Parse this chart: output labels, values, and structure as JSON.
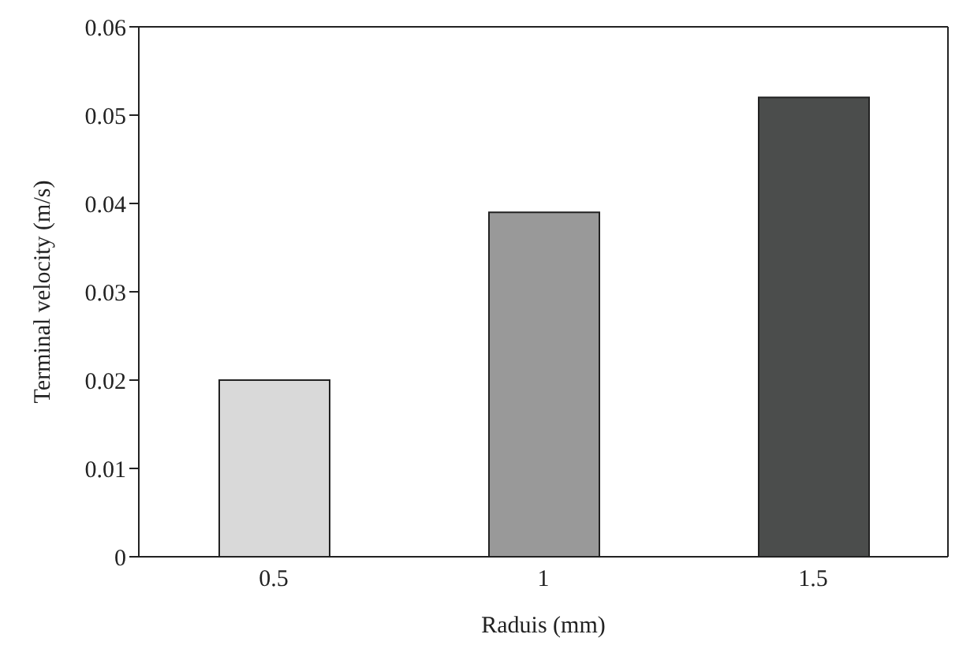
{
  "chart_data": {
    "type": "bar",
    "xlabel": "Raduis (mm)",
    "ylabel": "Terminal velocity (m/s)",
    "categories": [
      "0.5",
      "1",
      "1.5"
    ],
    "values": [
      0.02,
      0.039,
      0.052
    ],
    "colors": [
      "#d9d9d9",
      "#999999",
      "#4b4d4c"
    ],
    "ylim": [
      0,
      0.06
    ],
    "yticks": [
      0,
      0.01,
      0.02,
      0.03,
      0.04,
      0.05,
      0.06
    ],
    "grid": false,
    "legend": false
  }
}
